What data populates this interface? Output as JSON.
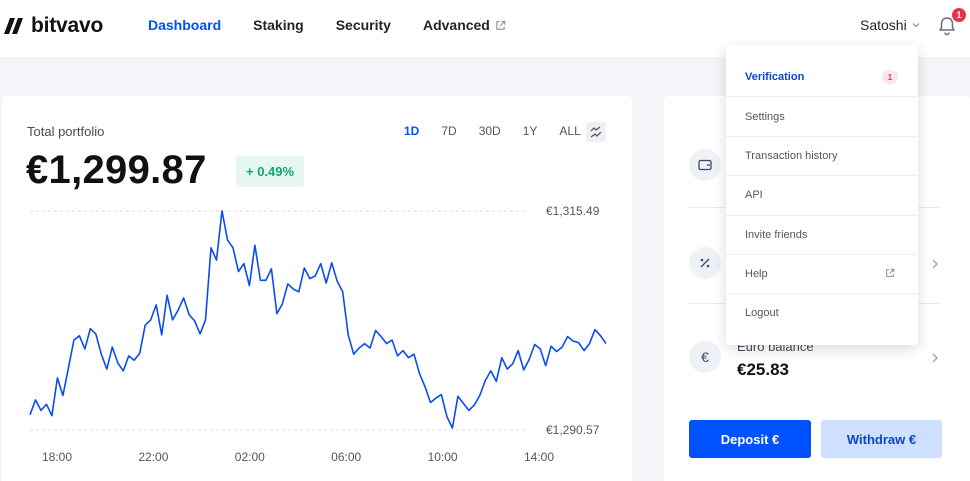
{
  "header": {
    "logo_text": "bitvavo",
    "nav": [
      {
        "label": "Dashboard",
        "active": true
      },
      {
        "label": "Staking",
        "active": false
      },
      {
        "label": "Security",
        "active": false
      },
      {
        "label": "Advanced",
        "active": false,
        "external": true
      }
    ],
    "user_name": "Satoshi",
    "notification_count": "1"
  },
  "portfolio": {
    "label": "Total portfolio",
    "value": "€1,299.87",
    "change": "+ 0.49%",
    "ranges": [
      "1D",
      "7D",
      "30D",
      "1Y",
      "ALL"
    ],
    "active_range": "1D",
    "chart_toggle_icon": "compare-arrows-icon"
  },
  "chart_data": {
    "type": "line",
    "x_ticks": [
      "18:00",
      "22:00",
      "02:00",
      "06:00",
      "10:00",
      "14:00"
    ],
    "y_markers": {
      "high": "€1,315.49",
      "low": "€1,290.57"
    },
    "y_range": [
      1290.57,
      1315.49
    ],
    "line_color": "#0b4cf0",
    "series": [
      {
        "values": [
          1292.3,
          1294.0,
          1292.8,
          1293.5,
          1292.2,
          1296.5,
          1294.5,
          1297.6,
          1300.8,
          1301.3,
          1299.8,
          1302.1,
          1301.5,
          1299.2,
          1297.5,
          1300.0,
          1298.2,
          1297.3,
          1299.0,
          1298.5,
          1299.3,
          1302.5,
          1303.1,
          1304.8,
          1301.4,
          1305.9,
          1303.1,
          1304.2,
          1305.6,
          1303.7,
          1303.0,
          1301.5,
          1303.1,
          1311.3,
          1309.9,
          1315.5,
          1312.2,
          1311.3,
          1308.6,
          1309.5,
          1307.0,
          1311.6,
          1307.6,
          1307.6,
          1308.9,
          1303.8,
          1304.9,
          1307.2,
          1306.6,
          1306.3,
          1309.0,
          1307.8,
          1308.1,
          1309.5,
          1307.3,
          1309.6,
          1307.5,
          1306.3,
          1301.4,
          1299.2,
          1299.9,
          1300.4,
          1299.9,
          1301.9,
          1301.2,
          1300.4,
          1300.8,
          1299.0,
          1299.6,
          1298.8,
          1299.2,
          1297.0,
          1295.5,
          1293.7,
          1294.2,
          1294.6,
          1292.1,
          1290.8,
          1294.4,
          1293.6,
          1292.8,
          1293.4,
          1294.5,
          1296.2,
          1297.3,
          1296.1,
          1298.8,
          1297.5,
          1298.1,
          1299.6,
          1297.4,
          1298.6,
          1300.3,
          1299.8,
          1297.9,
          1300.1,
          1299.5,
          1300.0,
          1301.2,
          1300.7,
          1300.5,
          1299.6,
          1300.4,
          1302.0,
          1301.3,
          1300.4
        ]
      }
    ]
  },
  "side_card": {
    "rows": [
      {
        "icon": "wallet-icon"
      },
      {
        "icon": "percent-icon"
      },
      {
        "icon": "euro-icon",
        "label": "Euro balance",
        "value": "€25.83",
        "icon_glyph": "€"
      }
    ],
    "deposit_label": "Deposit €",
    "withdraw_label": "Withdraw €"
  },
  "dropdown": {
    "items": [
      {
        "label": "Verification",
        "badge": "1"
      },
      {
        "label": "Settings"
      },
      {
        "label": "Transaction history"
      },
      {
        "label": "API"
      },
      {
        "label": "Invite friends"
      },
      {
        "label": "Help",
        "external": true
      },
      {
        "label": "Logout"
      }
    ]
  },
  "colors": {
    "accent": "#0051ff",
    "positive": "#15a36b",
    "badge": "#e5334f"
  }
}
